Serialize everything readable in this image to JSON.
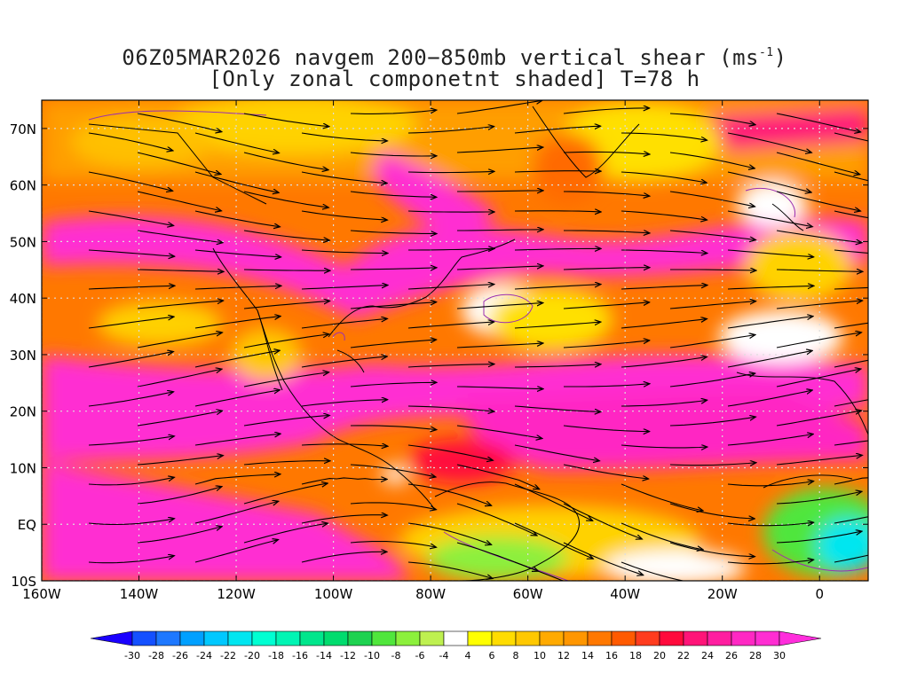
{
  "title": {
    "line1_prefix": "06Z05MAR2026 navgem 200−850mb vertical shear (ms",
    "line1_sup": "-1",
    "line1_suffix": ")",
    "line2": "[Only zonal componetnt shaded] T=78 h"
  },
  "map": {
    "lat_labels": [
      "70N",
      "60N",
      "50N",
      "40N",
      "30N",
      "20N",
      "10N",
      "EQ",
      "10S"
    ],
    "lat_values": [
      70,
      60,
      50,
      40,
      30,
      20,
      10,
      0,
      -10
    ],
    "lon_labels": [
      "160W",
      "140W",
      "120W",
      "100W",
      "80W",
      "60W",
      "40W",
      "20W",
      "0"
    ],
    "lon_values": [
      -160,
      -140,
      -120,
      -100,
      -80,
      -60,
      -40,
      -20,
      0
    ],
    "lat_range": [
      -10,
      75
    ],
    "lon_range": [
      -160,
      10
    ]
  },
  "colorbar": {
    "labels": [
      "-30",
      "-28",
      "-26",
      "-24",
      "-22",
      "-20",
      "-18",
      "-16",
      "-14",
      "-12",
      "-10",
      "-8",
      "-6",
      "-4",
      "4",
      "6",
      "8",
      "10",
      "12",
      "14",
      "16",
      "18",
      "20",
      "22",
      "24",
      "26",
      "28",
      "30"
    ],
    "colors": [
      "#1a00ff",
      "#1450ff",
      "#1e78ff",
      "#00a0ff",
      "#00c8ff",
      "#00e6f0",
      "#00ffd2",
      "#00f5b4",
      "#00e68c",
      "#00dc6e",
      "#1ed250",
      "#50e63c",
      "#8cf03c",
      "#bef050",
      "#ffffff",
      "#ffff00",
      "#ffdc00",
      "#ffc800",
      "#ffaa00",
      "#ff9600",
      "#ff7800",
      "#ff5a00",
      "#ff3c1e",
      "#ff0a3c",
      "#ff1478",
      "#ff1ea0",
      "#ff28c3",
      "#ff2dd2",
      "#ff2ddc"
    ]
  }
}
